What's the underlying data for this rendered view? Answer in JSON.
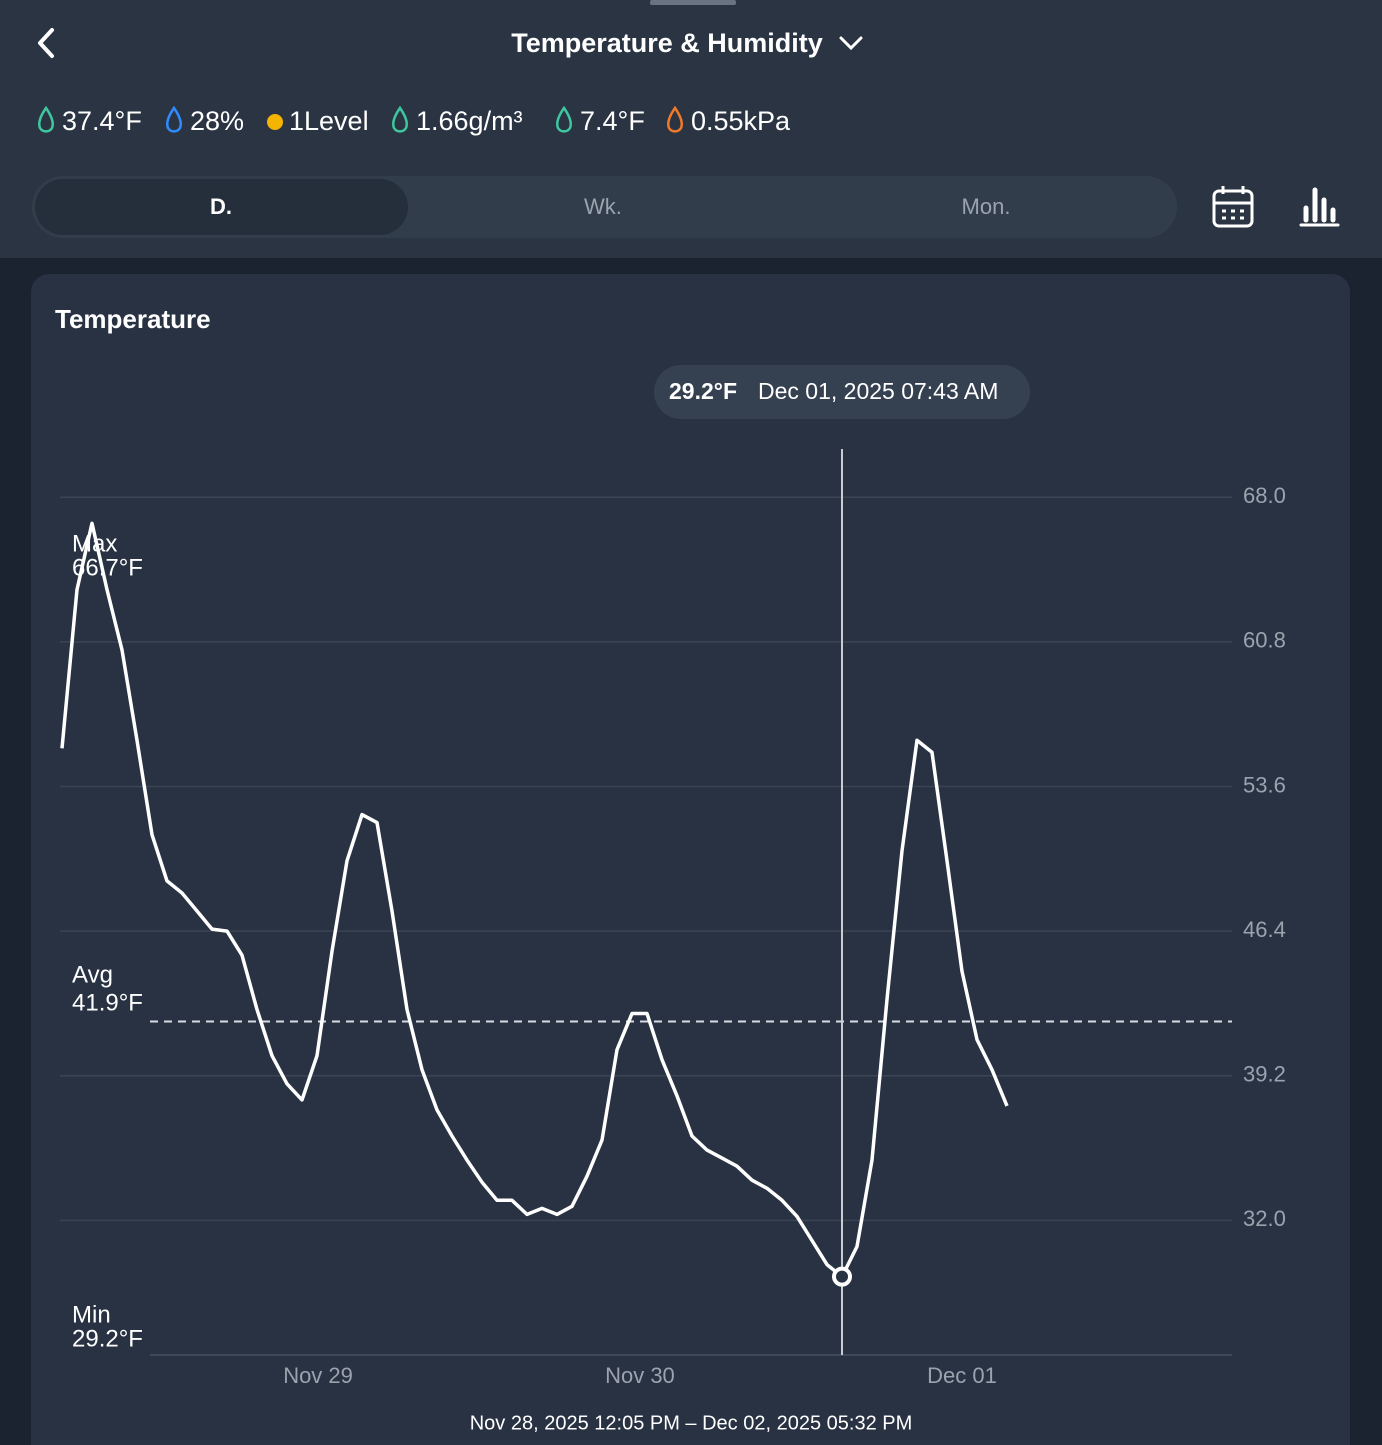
{
  "header": {
    "title": "Temperature & Humidity",
    "stats": [
      "37.4°F",
      "28%",
      "1Level",
      "1.66g/m³",
      "7.4°F",
      "0.55kPa"
    ],
    "tabs": [
      "D.",
      "Wk.",
      "Mon."
    ],
    "selected_tab": 0
  },
  "chart_data": {
    "type": "line",
    "title": "Temperature",
    "series": [
      {
        "name": "Temperature",
        "color": "#ffffff",
        "values": [
          55.5,
          63.4,
          66.7,
          63.4,
          60.4,
          55.9,
          51.2,
          48.9,
          48.3,
          47.4,
          46.5,
          46.4,
          45.2,
          42.5,
          40.2,
          38.8,
          38.0,
          40.2,
          45.4,
          49.9,
          52.2,
          51.8,
          47.4,
          42.5,
          39.5,
          37.5,
          36.2,
          35.0,
          33.9,
          33.0,
          33.0,
          32.3,
          32.6,
          32.3,
          32.7,
          34.2,
          36.0,
          40.5,
          42.3,
          42.3,
          40.0,
          38.2,
          36.2,
          35.5,
          35.1,
          34.7,
          34.0,
          33.6,
          33.0,
          32.2,
          31.0,
          29.8,
          29.2,
          30.7,
          35.0,
          43.0,
          50.4,
          55.9,
          55.3,
          49.9,
          44.4,
          41.0,
          39.5,
          37.7
        ]
      }
    ],
    "xlim": [
      0,
      78
    ],
    "xticks": [
      {
        "value": 17.07,
        "label": "Nov 29"
      },
      {
        "value": 38.53,
        "label": "Nov 30"
      },
      {
        "value": 60,
        "label": "Dec 01"
      }
    ],
    "ylim": [
      25.3,
      70.4
    ],
    "yticks": [
      {
        "value": 68,
        "label": "68.0"
      },
      60.8,
      53.6,
      46.4,
      39.2,
      {
        "value": 32,
        "label": "32.0"
      }
    ],
    "grid": true,
    "max": {
      "label": "Max",
      "value": 66.7,
      "value_label": "66.7°F"
    },
    "avg": {
      "label": "Avg",
      "value": 41.9,
      "value_label": "41.9°F"
    },
    "min": {
      "label": "Min",
      "value": 29.2,
      "value_label": "29.2°F"
    },
    "cursor_index": 52,
    "tooltip": {
      "value_label": "29.2°F",
      "time": "Dec 01, 2025 07:43 AM"
    },
    "range": "Nov 28, 2025 12:05 PM – Dec 02, 2025 05:32 PM"
  }
}
